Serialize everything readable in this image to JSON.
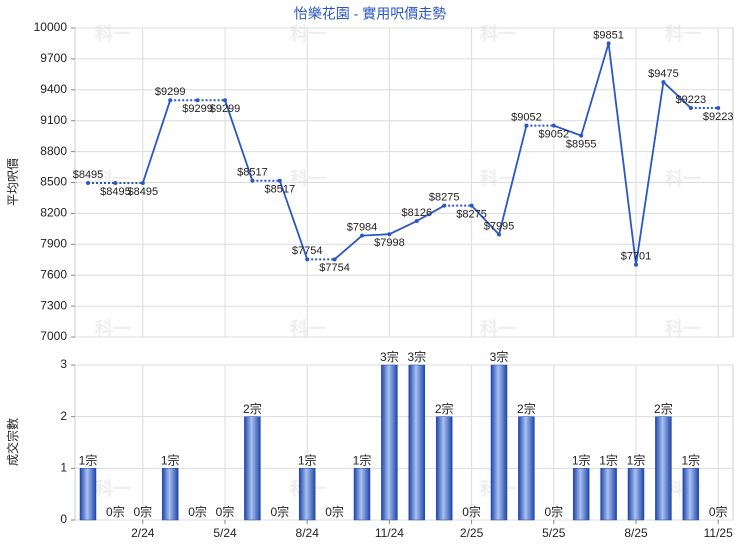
{
  "chart_data": [
    {
      "type": "line",
      "title": "怡樂花園 - 實用呎價走勢",
      "y_label": "平均呎價",
      "color": "#2a56c6",
      "values": [
        8495,
        8495,
        8495,
        9299,
        9299,
        9299,
        8517,
        8517,
        7754,
        7754,
        7984,
        7998,
        8126,
        8275,
        8275,
        7995,
        9052,
        9052,
        8955,
        9851,
        7701,
        9475,
        9223,
        9223
      ],
      "value_labels": [
        "$8495",
        "$8495",
        "$8495",
        "$9299",
        "$9299",
        "$9299",
        "$8517",
        "$8517",
        "$7754",
        "$7754",
        "$7984",
        "$7998",
        "$8126",
        "$8275",
        "$8275",
        "$7995",
        "$9052",
        "$9052",
        "$8955",
        "$9851",
        "$7701",
        "$9475",
        "$9223",
        "$9223"
      ],
      "ylim": [
        7000,
        10000
      ],
      "yticks": [
        7000,
        7300,
        7600,
        7900,
        8200,
        8500,
        8800,
        9100,
        9400,
        9700,
        10000
      ],
      "grid": true
    },
    {
      "type": "bar",
      "y_label": "成交宗數",
      "color": "#3a66cc",
      "categories": [
        null,
        null,
        "2/24",
        null,
        null,
        "5/24",
        null,
        null,
        "8/24",
        null,
        null,
        "11/24",
        null,
        null,
        "2/25",
        null,
        null,
        "5/25",
        null,
        null,
        "8/25",
        null,
        null,
        "11/25"
      ],
      "values": [
        1,
        0,
        0,
        1,
        0,
        0,
        2,
        0,
        1,
        0,
        1,
        3,
        3,
        2,
        0,
        3,
        2,
        0,
        1,
        1,
        1,
        2,
        1,
        0
      ],
      "value_labels": [
        "1宗",
        "0宗",
        "0宗",
        "1宗",
        "0宗",
        "0宗",
        "2宗",
        "0宗",
        "1宗",
        "0宗",
        "1宗",
        "3宗",
        "3宗",
        "2宗",
        "0宗",
        "3宗",
        "2宗",
        "0宗",
        "1宗",
        "1宗",
        "1宗",
        "2宗",
        "1宗",
        "0宗"
      ],
      "ylim": [
        0,
        3
      ],
      "yticks": [
        0,
        1,
        2,
        3
      ],
      "grid": true
    }
  ],
  "watermark": "科一"
}
